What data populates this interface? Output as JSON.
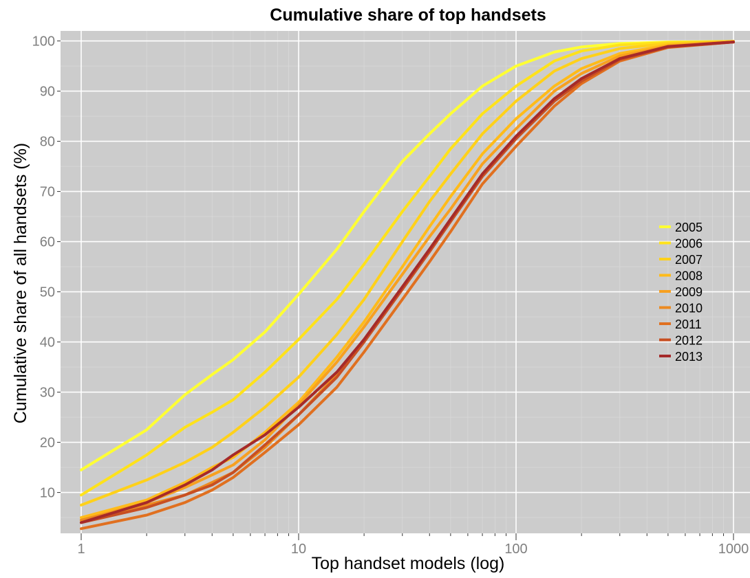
{
  "chart_data": {
    "type": "line",
    "title": "Cumulative share of top handsets",
    "xlabel": "Top handset models (log)",
    "ylabel": "Cumulative share of all handsets (%)",
    "x_scale": "log10",
    "xlim": [
      1,
      1000
    ],
    "ylim": [
      2,
      101
    ],
    "x_ticks": [
      1,
      10,
      100,
      1000
    ],
    "x_tick_labels": [
      "1",
      "10",
      "100",
      "1000"
    ],
    "y_ticks": [
      10,
      20,
      30,
      40,
      50,
      60,
      70,
      80,
      90,
      100
    ],
    "y_tick_labels": [
      "10",
      "20",
      "30",
      "40",
      "50",
      "60",
      "70",
      "80",
      "90",
      "100"
    ],
    "background_color": "#cccccc",
    "grid": true,
    "legend_position": "right",
    "x": [
      1,
      2,
      3,
      4,
      5,
      7,
      10,
      15,
      20,
      30,
      40,
      50,
      70,
      100,
      150,
      200,
      300,
      500,
      1000
    ],
    "series": [
      {
        "name": "2005",
        "color": "#ffff33",
        "values": [
          14.5,
          22.5,
          29.5,
          33.5,
          36.5,
          42,
          49.5,
          58.5,
          66,
          76,
          81.5,
          85.5,
          91,
          95,
          97.8,
          98.8,
          99.5,
          99.8,
          99.9
        ]
      },
      {
        "name": "2006",
        "color": "#ffe21a",
        "values": [
          9.5,
          17.5,
          23,
          26,
          28.5,
          34,
          40.5,
          48.5,
          55.5,
          66,
          73,
          78.5,
          85.5,
          91,
          96,
          98,
          99.2,
          99.7,
          99.9
        ]
      },
      {
        "name": "2007",
        "color": "#ffd11a",
        "values": [
          7.5,
          12.5,
          16,
          19,
          22,
          27,
          33,
          41.5,
          48.5,
          60,
          68,
          73.5,
          81.5,
          88,
          94,
          96.5,
          98.5,
          99.5,
          99.9
        ]
      },
      {
        "name": "2008",
        "color": "#ffbb1a",
        "values": [
          5,
          8.5,
          12,
          15,
          17,
          22,
          28,
          37,
          44,
          55,
          63,
          69,
          77.5,
          84.5,
          91,
          94.5,
          97.5,
          99.2,
          99.9
        ]
      },
      {
        "name": "2009",
        "color": "#f7a020",
        "values": [
          4.5,
          8,
          11,
          13.5,
          15.5,
          20.5,
          27.5,
          36,
          43,
          53.5,
          61,
          66.5,
          75.5,
          82.5,
          90,
          93.5,
          97,
          99,
          99.8
        ]
      },
      {
        "name": "2010",
        "color": "#ec8a20",
        "values": [
          4.5,
          7.5,
          9.5,
          12,
          14,
          19,
          25.5,
          33.5,
          40.5,
          51,
          58.5,
          64.5,
          73.5,
          81,
          88.5,
          92.5,
          96.5,
          98.8,
          99.8
        ]
      },
      {
        "name": "2011",
        "color": "#e07020",
        "values": [
          2.8,
          5.5,
          8,
          10.5,
          13,
          18,
          23.5,
          31,
          38,
          48.5,
          56,
          62,
          71.5,
          79,
          87,
          91.5,
          96,
          98.7,
          99.8
        ]
      },
      {
        "name": "2012",
        "color": "#c84f22",
        "values": [
          4,
          7,
          9.5,
          11.5,
          14,
          19.5,
          25.5,
          33,
          40,
          50.5,
          58,
          64,
          73,
          80.5,
          88,
          92,
          96.3,
          98.8,
          99.8
        ]
      },
      {
        "name": "2013",
        "color": "#a52a2a",
        "values": [
          4,
          8,
          11.5,
          14.5,
          17.5,
          21.5,
          27,
          34,
          40.5,
          51,
          58.5,
          64.5,
          73.5,
          81,
          88.5,
          92.5,
          96.5,
          98.9,
          99.8
        ]
      }
    ]
  }
}
